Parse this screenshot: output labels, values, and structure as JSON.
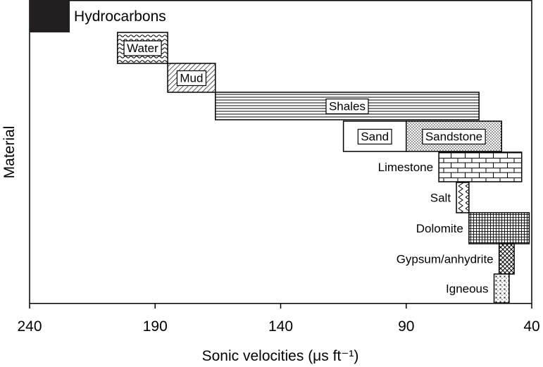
{
  "chart_data": {
    "type": "bar",
    "orientation": "horizontal-range",
    "xlabel": "Sonic velocities (μs ft⁻¹)",
    "ylabel": "Material",
    "xlim": [
      240,
      40
    ],
    "x_reversed": true,
    "xticks": [
      240,
      190,
      140,
      90,
      40
    ],
    "grid": false,
    "colors": {
      "frame": "#000000",
      "fill": "#ffffff",
      "hydrocarbons": "#231f20"
    },
    "series": [
      {
        "name": "Hydrocarbons",
        "start": 240,
        "end": 224,
        "pattern": "solid",
        "label_position": "right"
      },
      {
        "name": "Water",
        "start": 205,
        "end": 185,
        "pattern": "waves",
        "label_position": "inside-boxed"
      },
      {
        "name": "Mud",
        "start": 185,
        "end": 166,
        "pattern": "diagonal",
        "label_position": "inside-boxed"
      },
      {
        "name": "Shales",
        "start": 166,
        "end": 61,
        "pattern": "horizontal-lines",
        "label_position": "inside-boxed"
      },
      {
        "name": "Sand",
        "start": 115,
        "end": 90,
        "pattern": "none",
        "label_position": "inside-boxed"
      },
      {
        "name": "Sandstone",
        "start": 90,
        "end": 52,
        "pattern": "dots",
        "label_position": "inside-boxed"
      },
      {
        "name": "Limestone",
        "start": 77,
        "end": 44,
        "pattern": "bricks",
        "label_position": "left"
      },
      {
        "name": "Salt",
        "start": 70,
        "end": 65,
        "pattern": "zigzag",
        "label_position": "left"
      },
      {
        "name": "Dolomite",
        "start": 65,
        "end": 41,
        "pattern": "grid",
        "label_position": "left"
      },
      {
        "name": "Gypsum/anhydrite",
        "start": 53,
        "end": 47,
        "pattern": "crosshatch",
        "label_position": "left"
      },
      {
        "name": "Igneous",
        "start": 55,
        "end": 49,
        "pattern": "x-dots",
        "label_position": "left"
      }
    ]
  }
}
